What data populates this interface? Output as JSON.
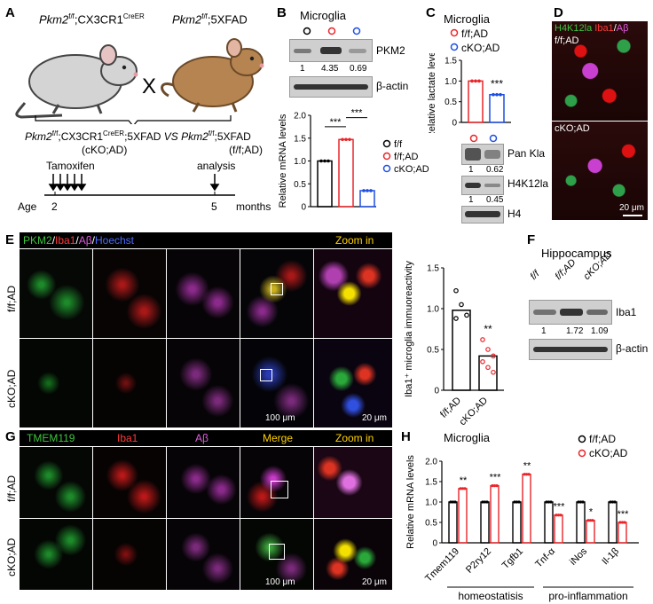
{
  "panel_labels": {
    "A": "A",
    "B": "B",
    "C": "C",
    "D": "D",
    "E": "E",
    "F": "F",
    "G": "G",
    "H": "H"
  },
  "A": {
    "mouse_left": "Pkm2",
    "mouse_left_sup": "f/f",
    "mouse_left_rest": ";CX3CR1",
    "mouse_left_sup2": "CreER",
    "mouse_right": "Pkm2",
    "mouse_right_sup": "f/f",
    "mouse_right_rest": ";5XFAD",
    "cross": "X",
    "cross_line1": "Pkm2",
    "cross_line1_sup": "f/f",
    "cross_line1_mid": ";CX3CR1",
    "cross_line1_sup2": "CreER",
    "cross_line1_end": ";5XFAD",
    "vs": "VS",
    "cross_line2": "Pkm2",
    "cross_line2_sup": "f/f",
    "cross_line2_end": ";5XFAD",
    "ko_label": "(cKO;AD)",
    "ctl_label": "(f/f;AD)",
    "tamoxifen": "Tamoxifen",
    "analysis": "analysis",
    "age": "Age",
    "age_2": "2",
    "age_5": "5",
    "months": "months"
  },
  "B": {
    "title": "Microglia",
    "blot_protein": "PKM2",
    "blot_loading": "β-actin",
    "quant": [
      "1",
      "4.35",
      "0.69"
    ],
    "chart_data": {
      "type": "bar",
      "categories": [
        "f/f",
        "f/f;AD",
        "cKO;AD"
      ],
      "values": [
        1.0,
        1.47,
        0.35
      ],
      "ylabel": "Relative mRNA levels",
      "ylim": [
        0,
        2.0
      ],
      "yticks": [
        "0",
        "0.5",
        "1.0",
        "1.5",
        "2.0"
      ],
      "sig": [
        "***",
        "***"
      ],
      "legend": [
        "f/f",
        "f/f;AD",
        "cKO;AD"
      ],
      "colors": [
        "#000000",
        "#e8262a",
        "#1f4fe0"
      ]
    }
  },
  "C": {
    "title": "Microglia",
    "legend": [
      "f/f;AD",
      "cKO;AD"
    ],
    "chart_data": {
      "type": "bar",
      "categories": [
        "f/f;AD",
        "cKO;AD"
      ],
      "values": [
        1.0,
        0.67
      ],
      "ylabel": "Relative lactate levels",
      "ylim": [
        0,
        1.5
      ],
      "yticks": [
        "0",
        "0.5",
        "1.0",
        "1.5"
      ],
      "sig": "***",
      "colors": [
        "#e8262a",
        "#1f4fe0"
      ]
    },
    "blots": [
      "Pan Kla",
      "H4K12la",
      "H4"
    ],
    "quant_pankla": [
      "1",
      "0.62"
    ],
    "quant_h4k12la": [
      "1",
      "0.45"
    ]
  },
  "D": {
    "stain_1": "H4K12la",
    "stain_2": "Iba1",
    "stain_3": "Aβ",
    "row_1": "f/f;AD",
    "row_2": "cKO;AD",
    "scale": "20 μm"
  },
  "E": {
    "stain_1": "PKM2",
    "stain_2": "Iba1",
    "stain_3": "Aβ",
    "stain_4": "Hoechst",
    "zoom": "Zoom in",
    "row_1": "f/f;AD",
    "row_2": "cKO;AD",
    "scale_1": "100 μm",
    "scale_2": "20 μm",
    "chart_data": {
      "type": "bar",
      "categories": [
        "f/f;AD",
        "cKO;AD"
      ],
      "values": [
        0.98,
        0.42
      ],
      "ylabel": "Iba1⁺ microglia  immuoreactivity",
      "ylim": [
        0,
        1.5
      ],
      "yticks": [
        "0",
        "0.5",
        "1.0",
        "1.5"
      ],
      "sig": "**"
    }
  },
  "F": {
    "title": "Hippocampus",
    "groups": [
      "f/f",
      "f/f;AD",
      "cKO;AD"
    ],
    "blot_protein": "Iba1",
    "blot_loading": "β-actin",
    "quant": [
      "1",
      "1.72",
      "1.09"
    ]
  },
  "G": {
    "cols": [
      "TMEM119",
      "Iba1",
      "Aβ",
      "Merge",
      "Zoom in"
    ],
    "row_1": "f/f;AD",
    "row_2": "cKO;AD",
    "scale_1": "100 μm",
    "scale_2": "20 μm"
  },
  "H": {
    "title": "Microglia",
    "legend": [
      "f/f;AD",
      "cKO;AD"
    ],
    "group_1": "homeostatisis",
    "group_2": "pro-inflammation",
    "chart_data": {
      "type": "bar",
      "categories": [
        "Tmem119",
        "P2ry12",
        "Tgfb1",
        "Tnf-α",
        "iNos",
        "Il-1β"
      ],
      "series": [
        {
          "name": "f/f;AD",
          "values": [
            1.0,
            1.0,
            1.0,
            1.0,
            1.0,
            1.0
          ]
        },
        {
          "name": "cKO;AD",
          "values": [
            1.33,
            1.4,
            1.68,
            0.68,
            0.55,
            0.5
          ]
        }
      ],
      "ylabel": "Relative mRNA levels",
      "ylim": [
        0,
        2.0
      ],
      "yticks": [
        "0",
        "0.5",
        "1.0",
        "1.5",
        "2.0"
      ],
      "sig": [
        "**",
        "***",
        "**",
        "***",
        "*",
        "***"
      ],
      "colors": [
        "#000000",
        "#e8262a"
      ]
    }
  }
}
